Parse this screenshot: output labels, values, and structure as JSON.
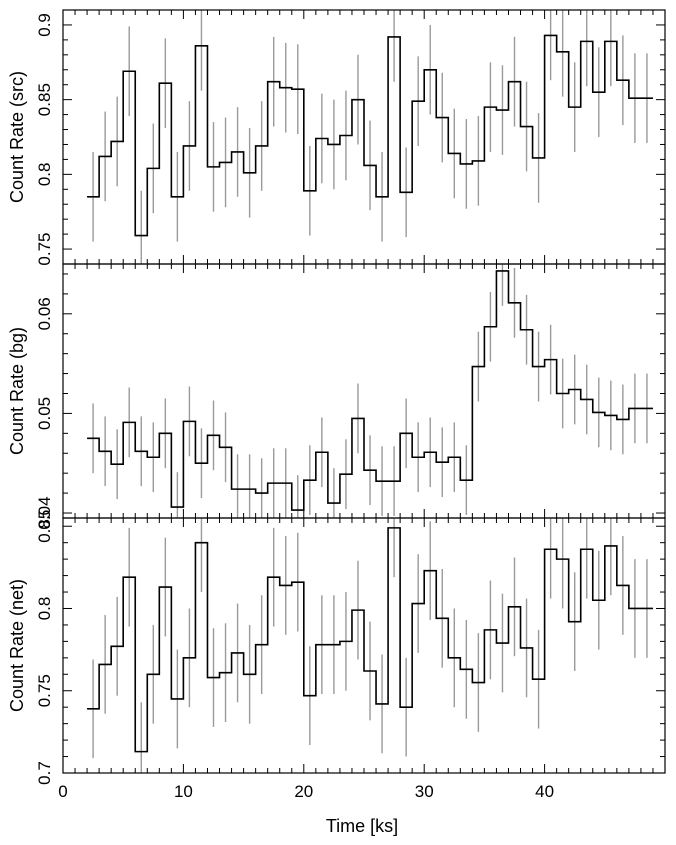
{
  "chart_data": {
    "type": "line",
    "style": "step histogram with error bars, three stacked panels sharing x axis",
    "colors": {
      "step": "#000000",
      "errorbar": "#9a9a9a",
      "frame": "#000000"
    },
    "xlabel": "Time [ks]",
    "xlim": [
      0,
      50
    ],
    "xticks": [
      0,
      10,
      20,
      30,
      40
    ],
    "x_bin_starts": [
      2,
      3,
      4,
      5,
      6,
      7,
      8,
      9,
      10,
      11,
      12,
      13,
      14,
      15,
      16,
      17,
      18,
      19,
      20,
      21,
      22,
      23,
      24,
      25,
      26,
      27,
      28,
      29,
      30,
      31,
      32,
      33,
      34,
      35,
      36,
      37,
      38,
      39,
      40,
      41,
      42,
      43,
      44,
      45,
      46,
      47,
      48
    ],
    "x_bin_end": 49,
    "panels": [
      {
        "id": "src",
        "ylabel": "Count Rate (src)",
        "ylim": [
          0.74,
          0.91
        ],
        "yticks": [
          "0.75",
          "0.8",
          "0.85",
          "0.9"
        ],
        "values": [
          0.785,
          0.812,
          0.822,
          0.869,
          0.759,
          0.804,
          0.861,
          0.785,
          0.819,
          0.886,
          0.805,
          0.808,
          0.815,
          0.801,
          0.819,
          0.862,
          0.858,
          0.857,
          0.789,
          0.824,
          0.82,
          0.826,
          0.85,
          0.806,
          0.785,
          0.892,
          0.788,
          0.849,
          0.87,
          0.838,
          0.814,
          0.807,
          0.809,
          0.845,
          0.843,
          0.862,
          0.832,
          0.811,
          0.893,
          0.882,
          0.845,
          0.889,
          0.855,
          0.889,
          0.863,
          0.851,
          0.851
        ],
        "error": 0.03
      },
      {
        "id": "bg",
        "ylabel": "Count Rate (bg)",
        "ylim": [
          0.0395,
          0.065
        ],
        "yticks": [
          "0.04",
          "0.05",
          "0.06"
        ],
        "values": [
          0.0475,
          0.0462,
          0.0449,
          0.0491,
          0.0462,
          0.0456,
          0.048,
          0.0406,
          0.0492,
          0.045,
          0.0478,
          0.0466,
          0.0424,
          0.0424,
          0.042,
          0.043,
          0.043,
          0.0403,
          0.0433,
          0.0461,
          0.041,
          0.0439,
          0.0495,
          0.0443,
          0.0432,
          0.0432,
          0.048,
          0.0456,
          0.0461,
          0.0451,
          0.0456,
          0.0433,
          0.0547,
          0.0587,
          0.0643,
          0.0611,
          0.0584,
          0.0547,
          0.0554,
          0.052,
          0.0524,
          0.0514,
          0.0501,
          0.0498,
          0.0494,
          0.0505,
          0.0505
        ],
        "error": 0.0035
      },
      {
        "id": "net",
        "ylabel": "Count Rate (net)",
        "ylim": [
          0.7,
          0.855
        ],
        "yticks": [
          "0.7",
          "0.75",
          "0.8",
          "0.85"
        ],
        "values": [
          0.739,
          0.766,
          0.777,
          0.819,
          0.713,
          0.76,
          0.813,
          0.745,
          0.77,
          0.84,
          0.758,
          0.761,
          0.773,
          0.76,
          0.778,
          0.819,
          0.814,
          0.816,
          0.747,
          0.778,
          0.778,
          0.78,
          0.799,
          0.762,
          0.742,
          0.849,
          0.74,
          0.803,
          0.823,
          0.794,
          0.77,
          0.763,
          0.755,
          0.787,
          0.779,
          0.801,
          0.776,
          0.757,
          0.836,
          0.83,
          0.792,
          0.836,
          0.805,
          0.838,
          0.814,
          0.8,
          0.8
        ],
        "error": 0.03
      }
    ]
  }
}
